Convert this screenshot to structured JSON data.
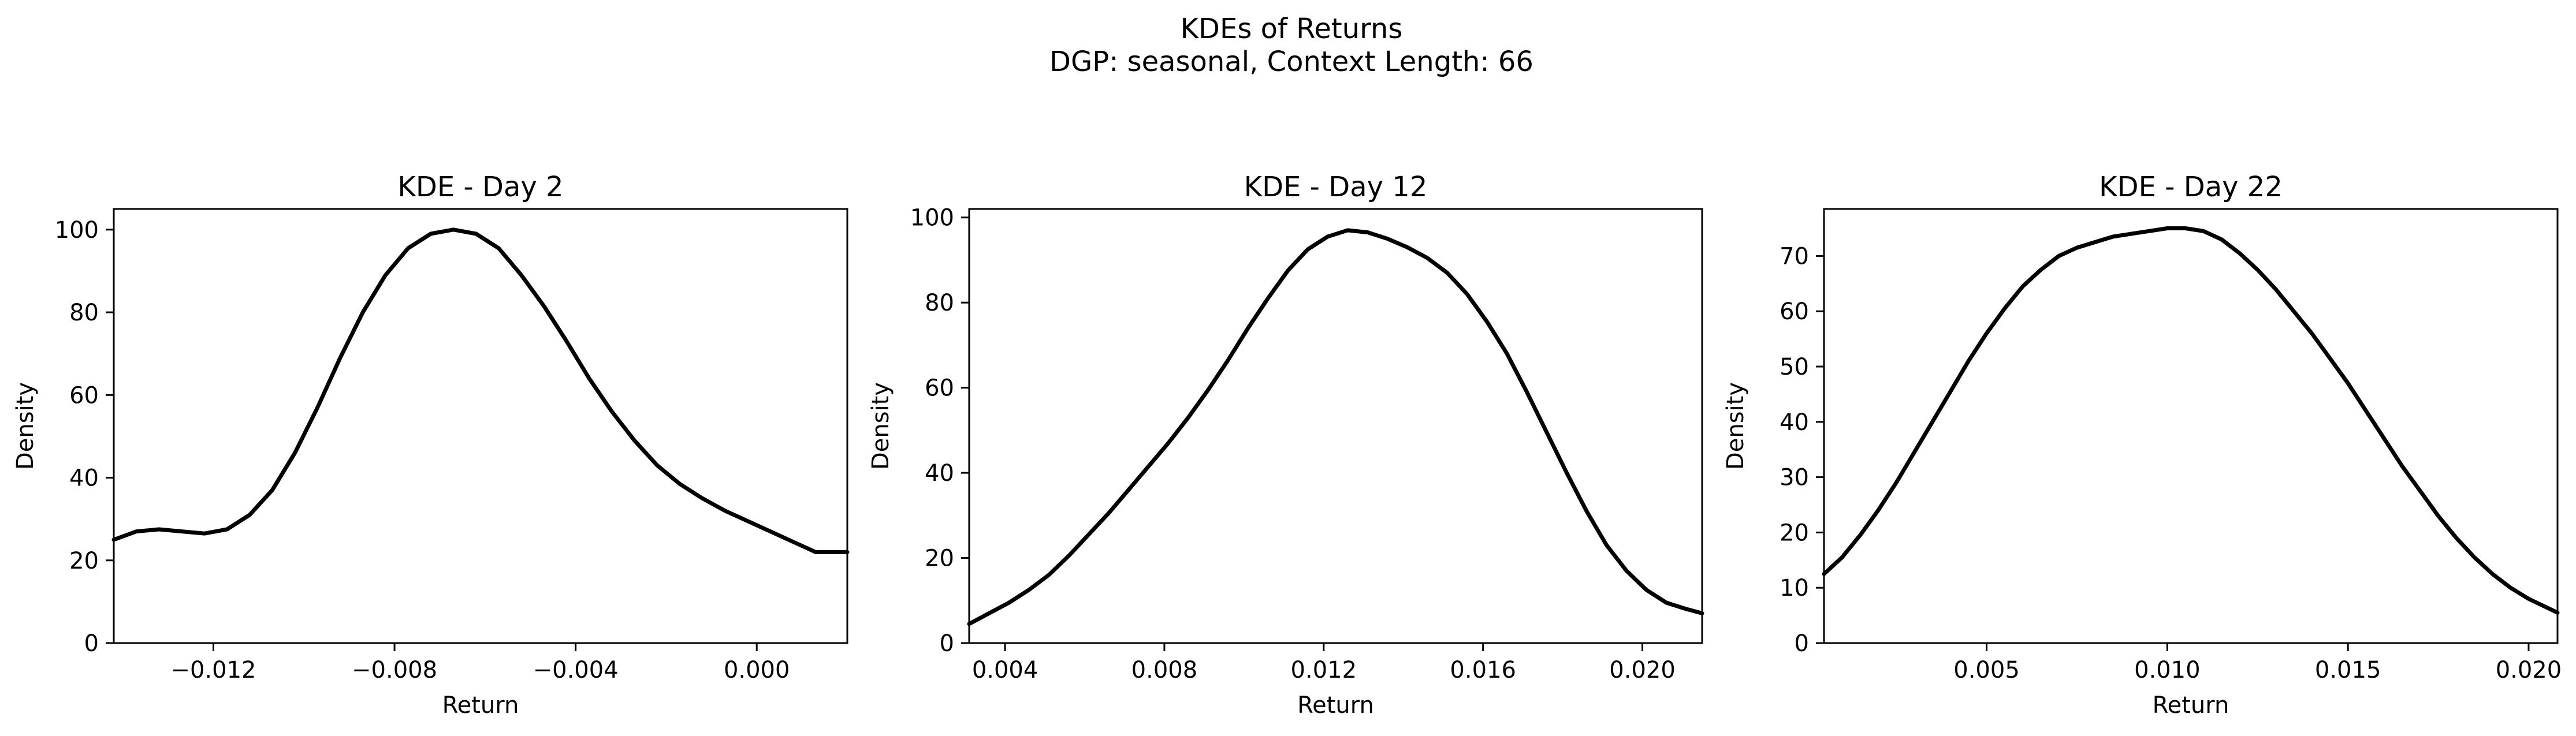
{
  "figure": {
    "title_line1": "KDEs of Returns",
    "title_line2": "DGP: seasonal, Context Length: 66"
  },
  "chart_data": [
    {
      "type": "line",
      "title": "KDE - Day 2",
      "xlabel": "Return",
      "ylabel": "Density",
      "xlim": [
        -0.0142,
        0.002
      ],
      "ylim": [
        0,
        105
      ],
      "xticks": [
        -0.012,
        -0.008,
        -0.004,
        0.0
      ],
      "xtick_labels": [
        "−0.012",
        "−0.008",
        "−0.004",
        "0.000"
      ],
      "yticks": [
        0,
        20,
        40,
        60,
        80,
        100
      ],
      "ytick_labels": [
        "0",
        "20",
        "40",
        "60",
        "80",
        "100"
      ],
      "grid": false,
      "color": "#000000",
      "x": [
        -0.0142,
        -0.0137,
        -0.0132,
        -0.0127,
        -0.0122,
        -0.0117,
        -0.0112,
        -0.0107,
        -0.0102,
        -0.0097,
        -0.0092,
        -0.0087,
        -0.0082,
        -0.0077,
        -0.0072,
        -0.0067,
        -0.0062,
        -0.0057,
        -0.0052,
        -0.0047,
        -0.0042,
        -0.0037,
        -0.0032,
        -0.0027,
        -0.0022,
        -0.0017,
        -0.0012,
        -0.0007,
        -0.0002,
        0.0003,
        0.0008,
        0.0013,
        0.002
      ],
      "y": [
        25,
        27,
        27.5,
        27,
        26.5,
        27.5,
        31,
        37,
        46,
        57,
        69,
        80,
        89,
        95.5,
        99,
        100,
        99,
        95.5,
        89,
        81.5,
        73,
        64,
        56,
        49,
        43,
        38.5,
        35,
        32,
        29.5,
        27,
        24.5,
        22,
        22
      ]
    },
    {
      "type": "line",
      "title": "KDE - Day 12",
      "xlabel": "Return",
      "ylabel": "Density",
      "xlim": [
        0.0031,
        0.0215
      ],
      "ylim": [
        0,
        102
      ],
      "xticks": [
        0.004,
        0.008,
        0.012,
        0.016,
        0.02
      ],
      "xtick_labels": [
        "0.004",
        "0.008",
        "0.012",
        "0.016",
        "0.020"
      ],
      "yticks": [
        0,
        20,
        40,
        60,
        80,
        100
      ],
      "ytick_labels": [
        "0",
        "20",
        "40",
        "60",
        "80",
        "100"
      ],
      "grid": false,
      "color": "#000000",
      "x": [
        0.0031,
        0.0036,
        0.0041,
        0.0046,
        0.0051,
        0.0056,
        0.0061,
        0.0066,
        0.0071,
        0.0076,
        0.0081,
        0.0086,
        0.0091,
        0.0096,
        0.0101,
        0.0106,
        0.0111,
        0.0116,
        0.0121,
        0.0126,
        0.0131,
        0.0136,
        0.0141,
        0.0146,
        0.0151,
        0.0156,
        0.0161,
        0.0166,
        0.0171,
        0.0176,
        0.0181,
        0.0186,
        0.0191,
        0.0196,
        0.0201,
        0.0206,
        0.0211,
        0.0215
      ],
      "y": [
        4.5,
        7,
        9.5,
        12.5,
        16,
        20.5,
        25.5,
        30.5,
        36,
        41.5,
        47,
        53,
        59.5,
        66.5,
        74,
        81,
        87.5,
        92.5,
        95.5,
        97,
        96.5,
        95,
        93,
        90.5,
        87,
        82,
        75.5,
        68,
        59,
        49.5,
        40,
        31,
        23,
        17,
        12.5,
        9.5,
        8,
        7
      ]
    },
    {
      "type": "line",
      "title": "KDE - Day 22",
      "xlabel": "Return",
      "ylabel": "Density",
      "xlim": [
        0.0005,
        0.0208
      ],
      "ylim": [
        0,
        78.5
      ],
      "xticks": [
        0.005,
        0.01,
        0.015,
        0.02
      ],
      "xtick_labels": [
        "0.005",
        "0.010",
        "0.015",
        "0.020"
      ],
      "yticks": [
        0,
        10,
        20,
        30,
        40,
        50,
        60,
        70
      ],
      "ytick_labels": [
        "0",
        "10",
        "20",
        "30",
        "40",
        "50",
        "60",
        "70"
      ],
      "grid": false,
      "color": "#000000",
      "x": [
        0.0005,
        0.001,
        0.0015,
        0.002,
        0.0025,
        0.003,
        0.0035,
        0.004,
        0.0045,
        0.005,
        0.0055,
        0.006,
        0.0065,
        0.007,
        0.0075,
        0.008,
        0.0085,
        0.009,
        0.0095,
        0.01,
        0.0105,
        0.011,
        0.0115,
        0.012,
        0.0125,
        0.013,
        0.0135,
        0.014,
        0.0145,
        0.015,
        0.0155,
        0.016,
        0.0165,
        0.017,
        0.0175,
        0.018,
        0.0185,
        0.019,
        0.0195,
        0.02,
        0.0208
      ],
      "y": [
        12.5,
        15.5,
        19.5,
        24,
        29,
        34.5,
        40,
        45.5,
        51,
        56,
        60.5,
        64.5,
        67.5,
        70,
        71.5,
        72.5,
        73.5,
        74,
        74.5,
        75,
        75,
        74.5,
        73,
        70.5,
        67.5,
        64,
        60,
        56,
        51.5,
        47,
        42,
        37,
        32,
        27.5,
        23,
        19,
        15.5,
        12.5,
        10,
        8,
        5.5
      ]
    }
  ]
}
